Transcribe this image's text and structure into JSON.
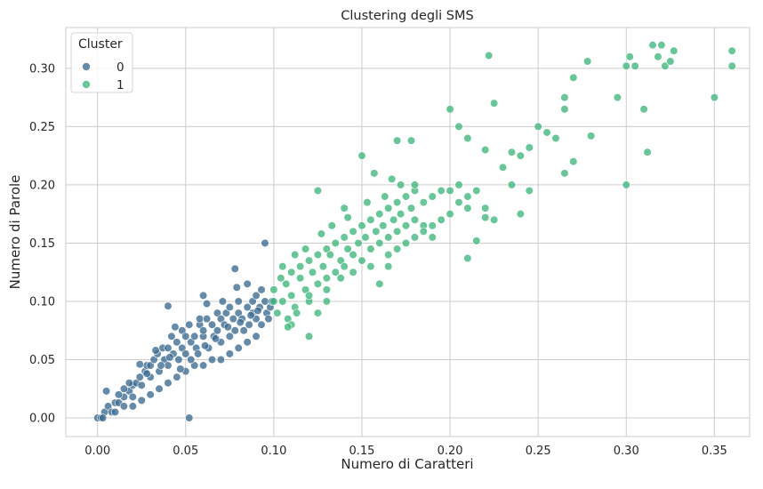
{
  "chart_data": {
    "type": "scatter",
    "title": "Clustering degli SMS",
    "xlabel": "Numero di Caratteri",
    "ylabel": "Numero di Parole",
    "xlim": [
      -0.018,
      0.37
    ],
    "ylim": [
      -0.016,
      0.335
    ],
    "x_ticks": [
      0.0,
      0.05,
      0.1,
      0.15,
      0.2,
      0.25,
      0.3,
      0.35
    ],
    "x_tick_labels": [
      "0.00",
      "0.05",
      "0.10",
      "0.15",
      "0.20",
      "0.25",
      "0.30",
      "0.35"
    ],
    "y_ticks": [
      0.0,
      0.05,
      0.1,
      0.15,
      0.2,
      0.25,
      0.3
    ],
    "y_tick_labels": [
      "0.00",
      "0.05",
      "0.10",
      "0.15",
      "0.20",
      "0.25",
      "0.30"
    ],
    "grid": true,
    "legend": {
      "title": "Cluster",
      "position": "top-left",
      "entries": [
        {
          "label": "0",
          "color": "#3b6a8f"
        },
        {
          "label": "1",
          "color": "#3fb67b"
        }
      ]
    },
    "series": [
      {
        "name": "0",
        "color": "#3b6a8f",
        "points": [
          [
            0.0,
            0.0
          ],
          [
            0.002,
            0.0
          ],
          [
            0.004,
            0.005
          ],
          [
            0.003,
            0.0
          ],
          [
            0.006,
            0.01
          ],
          [
            0.005,
            0.023
          ],
          [
            0.008,
            0.005
          ],
          [
            0.01,
            0.013
          ],
          [
            0.01,
            0.005
          ],
          [
            0.012,
            0.013
          ],
          [
            0.015,
            0.018
          ],
          [
            0.015,
            0.01
          ],
          [
            0.018,
            0.023
          ],
          [
            0.02,
            0.018
          ],
          [
            0.02,
            0.028
          ],
          [
            0.022,
            0.03
          ],
          [
            0.024,
            0.035
          ],
          [
            0.025,
            0.028
          ],
          [
            0.027,
            0.04
          ],
          [
            0.028,
            0.045
          ],
          [
            0.03,
            0.045
          ],
          [
            0.03,
            0.035
          ],
          [
            0.032,
            0.05
          ],
          [
            0.034,
            0.055
          ],
          [
            0.035,
            0.04
          ],
          [
            0.037,
            0.06
          ],
          [
            0.038,
            0.05
          ],
          [
            0.04,
            0.06
          ],
          [
            0.04,
            0.045
          ],
          [
            0.042,
            0.07
          ],
          [
            0.043,
            0.055
          ],
          [
            0.045,
            0.065
          ],
          [
            0.046,
            0.05
          ],
          [
            0.048,
            0.06
          ],
          [
            0.048,
            0.075
          ],
          [
            0.05,
            0.07
          ],
          [
            0.05,
            0.055
          ],
          [
            0.052,
            0.08
          ],
          [
            0.053,
            0.065
          ],
          [
            0.055,
            0.07
          ],
          [
            0.056,
            0.06
          ],
          [
            0.058,
            0.08
          ],
          [
            0.058,
            0.085
          ],
          [
            0.06,
            0.07
          ],
          [
            0.06,
            0.075
          ],
          [
            0.062,
            0.085
          ],
          [
            0.063,
            0.06
          ],
          [
            0.065,
            0.08
          ],
          [
            0.066,
            0.07
          ],
          [
            0.068,
            0.09
          ],
          [
            0.068,
            0.075
          ],
          [
            0.07,
            0.085
          ],
          [
            0.07,
            0.065
          ],
          [
            0.072,
            0.08
          ],
          [
            0.073,
            0.09
          ],
          [
            0.075,
            0.07
          ],
          [
            0.075,
            0.095
          ],
          [
            0.077,
            0.085
          ],
          [
            0.078,
            0.075
          ],
          [
            0.08,
            0.09
          ],
          [
            0.08,
            0.1
          ],
          [
            0.082,
            0.085
          ],
          [
            0.083,
            0.075
          ],
          [
            0.085,
            0.095
          ],
          [
            0.086,
            0.08
          ],
          [
            0.088,
            0.09
          ],
          [
            0.088,
            0.1
          ],
          [
            0.09,
            0.085
          ],
          [
            0.09,
            0.105
          ],
          [
            0.092,
            0.095
          ],
          [
            0.093,
            0.08
          ],
          [
            0.095,
            0.1
          ],
          [
            0.096,
            0.09
          ],
          [
            0.098,
            0.095
          ],
          [
            0.025,
            0.015
          ],
          [
            0.035,
            0.025
          ],
          [
            0.045,
            0.035
          ],
          [
            0.055,
            0.045
          ],
          [
            0.065,
            0.05
          ],
          [
            0.075,
            0.055
          ],
          [
            0.085,
            0.065
          ],
          [
            0.09,
            0.07
          ],
          [
            0.02,
            0.01
          ],
          [
            0.03,
            0.02
          ],
          [
            0.04,
            0.03
          ],
          [
            0.05,
            0.04
          ],
          [
            0.06,
            0.045
          ],
          [
            0.07,
            0.05
          ],
          [
            0.08,
            0.06
          ],
          [
            0.04,
            0.096
          ],
          [
            0.095,
            0.15
          ],
          [
            0.078,
            0.128
          ],
          [
            0.06,
            0.105
          ],
          [
            0.052,
            0.0
          ],
          [
            0.015,
            0.025
          ],
          [
            0.024,
            0.046
          ],
          [
            0.033,
            0.058
          ],
          [
            0.044,
            0.078
          ],
          [
            0.062,
            0.098
          ],
          [
            0.071,
            0.1
          ],
          [
            0.085,
            0.115
          ],
          [
            0.079,
            0.112
          ],
          [
            0.093,
            0.11
          ],
          [
            0.012,
            0.02
          ],
          [
            0.018,
            0.03
          ],
          [
            0.028,
            0.038
          ],
          [
            0.036,
            0.045
          ],
          [
            0.041,
            0.052
          ],
          [
            0.047,
            0.042
          ],
          [
            0.053,
            0.05
          ],
          [
            0.057,
            0.055
          ],
          [
            0.061,
            0.062
          ],
          [
            0.067,
            0.068
          ],
          [
            0.074,
            0.078
          ],
          [
            0.081,
            0.082
          ],
          [
            0.087,
            0.088
          ],
          [
            0.091,
            0.092
          ],
          [
            0.097,
            0.085
          ],
          [
            0.099,
            0.1
          ]
        ]
      },
      {
        "name": "1",
        "color": "#3fb67b",
        "points": [
          [
            0.1,
            0.1
          ],
          [
            0.1,
            0.11
          ],
          [
            0.102,
            0.09
          ],
          [
            0.104,
            0.12
          ],
          [
            0.105,
            0.1
          ],
          [
            0.107,
            0.115
          ],
          [
            0.108,
            0.085
          ],
          [
            0.11,
            0.125
          ],
          [
            0.11,
            0.105
          ],
          [
            0.112,
            0.095
          ],
          [
            0.115,
            0.12
          ],
          [
            0.115,
            0.13
          ],
          [
            0.118,
            0.11
          ],
          [
            0.12,
            0.135
          ],
          [
            0.12,
            0.1
          ],
          [
            0.122,
            0.125
          ],
          [
            0.125,
            0.14
          ],
          [
            0.125,
            0.115
          ],
          [
            0.128,
            0.13
          ],
          [
            0.13,
            0.145
          ],
          [
            0.13,
            0.12
          ],
          [
            0.132,
            0.14
          ],
          [
            0.135,
            0.15
          ],
          [
            0.135,
            0.125
          ],
          [
            0.138,
            0.135
          ],
          [
            0.14,
            0.155
          ],
          [
            0.14,
            0.13
          ],
          [
            0.142,
            0.145
          ],
          [
            0.145,
            0.16
          ],
          [
            0.145,
            0.14
          ],
          [
            0.148,
            0.15
          ],
          [
            0.15,
            0.165
          ],
          [
            0.15,
            0.135
          ],
          [
            0.152,
            0.155
          ],
          [
            0.155,
            0.17
          ],
          [
            0.155,
            0.145
          ],
          [
            0.158,
            0.16
          ],
          [
            0.16,
            0.175
          ],
          [
            0.16,
            0.15
          ],
          [
            0.162,
            0.165
          ],
          [
            0.165,
            0.18
          ],
          [
            0.165,
            0.155
          ],
          [
            0.168,
            0.17
          ],
          [
            0.17,
            0.185
          ],
          [
            0.17,
            0.16
          ],
          [
            0.172,
            0.175
          ],
          [
            0.175,
            0.19
          ],
          [
            0.175,
            0.165
          ],
          [
            0.178,
            0.18
          ],
          [
            0.18,
            0.195
          ],
          [
            0.18,
            0.17
          ],
          [
            0.185,
            0.185
          ],
          [
            0.19,
            0.19
          ],
          [
            0.195,
            0.195
          ],
          [
            0.2,
            0.195
          ],
          [
            0.205,
            0.2
          ],
          [
            0.21,
            0.19
          ],
          [
            0.215,
            0.195
          ],
          [
            0.22,
            0.18
          ],
          [
            0.225,
            0.17
          ],
          [
            0.125,
            0.195
          ],
          [
            0.14,
            0.18
          ],
          [
            0.15,
            0.225
          ],
          [
            0.17,
            0.238
          ],
          [
            0.178,
            0.238
          ],
          [
            0.18,
            0.2
          ],
          [
            0.2,
            0.265
          ],
          [
            0.205,
            0.25
          ],
          [
            0.21,
            0.24
          ],
          [
            0.22,
            0.23
          ],
          [
            0.225,
            0.27
          ],
          [
            0.222,
            0.311
          ],
          [
            0.235,
            0.228
          ],
          [
            0.24,
            0.225
          ],
          [
            0.245,
            0.232
          ],
          [
            0.25,
            0.25
          ],
          [
            0.255,
            0.245
          ],
          [
            0.26,
            0.24
          ],
          [
            0.265,
            0.275
          ],
          [
            0.265,
            0.265
          ],
          [
            0.27,
            0.292
          ],
          [
            0.265,
            0.21
          ],
          [
            0.27,
            0.22
          ],
          [
            0.28,
            0.242
          ],
          [
            0.278,
            0.306
          ],
          [
            0.295,
            0.275
          ],
          [
            0.3,
            0.302
          ],
          [
            0.302,
            0.31
          ],
          [
            0.305,
            0.302
          ],
          [
            0.31,
            0.265
          ],
          [
            0.312,
            0.228
          ],
          [
            0.3,
            0.2
          ],
          [
            0.315,
            0.32
          ],
          [
            0.318,
            0.31
          ],
          [
            0.32,
            0.32
          ],
          [
            0.322,
            0.302
          ],
          [
            0.325,
            0.306
          ],
          [
            0.327,
            0.315
          ],
          [
            0.35,
            0.275
          ],
          [
            0.36,
            0.315
          ],
          [
            0.36,
            0.302
          ],
          [
            0.23,
            0.215
          ],
          [
            0.235,
            0.2
          ],
          [
            0.245,
            0.195
          ],
          [
            0.24,
            0.175
          ],
          [
            0.21,
            0.137
          ],
          [
            0.215,
            0.152
          ],
          [
            0.22,
            0.172
          ],
          [
            0.19,
            0.155
          ],
          [
            0.185,
            0.165
          ],
          [
            0.165,
            0.13
          ],
          [
            0.16,
            0.115
          ],
          [
            0.125,
            0.09
          ],
          [
            0.13,
            0.1
          ],
          [
            0.11,
            0.08
          ],
          [
            0.12,
            0.07
          ],
          [
            0.108,
            0.078
          ],
          [
            0.113,
            0.09
          ],
          [
            0.12,
            0.105
          ],
          [
            0.13,
            0.11
          ],
          [
            0.138,
            0.12
          ],
          [
            0.145,
            0.125
          ],
          [
            0.155,
            0.13
          ],
          [
            0.165,
            0.14
          ],
          [
            0.17,
            0.145
          ],
          [
            0.175,
            0.15
          ],
          [
            0.18,
            0.155
          ],
          [
            0.185,
            0.16
          ],
          [
            0.19,
            0.165
          ],
          [
            0.195,
            0.17
          ],
          [
            0.2,
            0.175
          ],
          [
            0.205,
            0.185
          ],
          [
            0.21,
            0.18
          ],
          [
            0.133,
            0.165
          ],
          [
            0.127,
            0.158
          ],
          [
            0.118,
            0.145
          ],
          [
            0.112,
            0.14
          ],
          [
            0.105,
            0.13
          ],
          [
            0.142,
            0.172
          ],
          [
            0.153,
            0.185
          ],
          [
            0.163,
            0.19
          ],
          [
            0.172,
            0.2
          ],
          [
            0.157,
            0.21
          ],
          [
            0.167,
            0.205
          ]
        ]
      }
    ]
  }
}
